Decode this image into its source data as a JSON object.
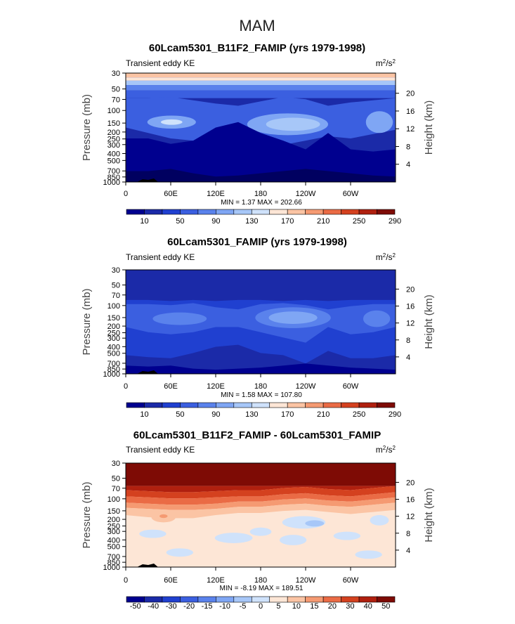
{
  "figure_title": "MAM",
  "colors": {
    "cb_pos": [
      "#00008f",
      "#1b2aa8",
      "#2040d0",
      "#3b5fe0",
      "#5a82ec",
      "#7fa6f4",
      "#a7c7f8",
      "#cfe2fb",
      "#fde6d6",
      "#fbc4a4",
      "#f59a72",
      "#ea6b45",
      "#d4411f",
      "#b0200f",
      "#7e0b05"
    ],
    "cb_diff": [
      "#00008f",
      "#1b2aa8",
      "#2040d0",
      "#3b5fe0",
      "#5a82ec",
      "#7fa6f4",
      "#a7c7f8",
      "#cfe2fb",
      "#fde6d6",
      "#fbc4a4",
      "#f59a72",
      "#ea6b45",
      "#d4411f",
      "#b0200f",
      "#7e0b05"
    ]
  },
  "chart_data": [
    {
      "type": "heatmap",
      "title": "60Lcam5301_B11F2_FAMIP (yrs 1979-1998)",
      "left_label": "Transient eddy KE",
      "units": "m²/s²",
      "units_base": "m",
      "units_sup1": "2",
      "units_mid": "/s",
      "units_sup2": "2",
      "ylabel": "Pressure (mb)",
      "ylabel_right": "Height (km)",
      "x_ticks": [
        "0",
        "60E",
        "120E",
        "180",
        "120W",
        "60W"
      ],
      "x_tick_values": [
        0,
        60,
        120,
        180,
        240,
        300
      ],
      "xlim": [
        0,
        360
      ],
      "y_ticks": [
        "30",
        "50",
        "70",
        "100",
        "150",
        "200",
        "250",
        "300",
        "400",
        "500",
        "700",
        "850",
        "1000"
      ],
      "y_tick_values": [
        30,
        50,
        70,
        100,
        150,
        200,
        250,
        300,
        400,
        500,
        700,
        850,
        1000
      ],
      "ylim": [
        30,
        1000
      ],
      "height_ticks": [
        "20",
        "16",
        "12",
        "8",
        "4"
      ],
      "height_tick_values": [
        20,
        16,
        12,
        8,
        4
      ],
      "stats": "MIN =    1.37   MAX = 202.66",
      "min": 1.37,
      "max": 202.66,
      "colorbar_labels": [
        "10",
        "50",
        "90",
        "130",
        "170",
        "210",
        "250",
        "290"
      ],
      "levels": [
        10,
        30,
        50,
        70,
        90,
        110,
        130,
        150,
        170,
        190,
        210,
        230,
        250,
        270,
        290
      ]
    },
    {
      "type": "heatmap",
      "title": "60Lcam5301_FAMIP (yrs 1979-1998)",
      "left_label": "Transient eddy KE",
      "units": "m²/s²",
      "units_base": "m",
      "units_sup1": "2",
      "units_mid": "/s",
      "units_sup2": "2",
      "ylabel": "Pressure (mb)",
      "ylabel_right": "Height (km)",
      "x_ticks": [
        "0",
        "60E",
        "120E",
        "180",
        "120W",
        "60W"
      ],
      "x_tick_values": [
        0,
        60,
        120,
        180,
        240,
        300
      ],
      "xlim": [
        0,
        360
      ],
      "y_ticks": [
        "30",
        "50",
        "70",
        "100",
        "150",
        "200",
        "250",
        "300",
        "400",
        "500",
        "700",
        "850",
        "1000"
      ],
      "y_tick_values": [
        30,
        50,
        70,
        100,
        150,
        200,
        250,
        300,
        400,
        500,
        700,
        850,
        1000
      ],
      "ylim": [
        30,
        1000
      ],
      "height_ticks": [
        "20",
        "16",
        "12",
        "8",
        "4"
      ],
      "height_tick_values": [
        20,
        16,
        12,
        8,
        4
      ],
      "stats": "MIN =    1.58   MAX = 107.80",
      "min": 1.58,
      "max": 107.8,
      "colorbar_labels": [
        "10",
        "50",
        "90",
        "130",
        "170",
        "210",
        "250",
        "290"
      ],
      "levels": [
        10,
        30,
        50,
        70,
        90,
        110,
        130,
        150,
        170,
        190,
        210,
        230,
        250,
        270,
        290
      ]
    },
    {
      "type": "heatmap",
      "title": "60Lcam5301_B11F2_FAMIP - 60Lcam5301_FAMIP",
      "left_label": "Transient eddy KE",
      "units": "m²/s²",
      "units_base": "m",
      "units_sup1": "2",
      "units_mid": "/s",
      "units_sup2": "2",
      "ylabel": "Pressure (mb)",
      "ylabel_right": "Height (km)",
      "x_ticks": [
        "0",
        "60E",
        "120E",
        "180",
        "120W",
        "60W"
      ],
      "x_tick_values": [
        0,
        60,
        120,
        180,
        240,
        300
      ],
      "xlim": [
        0,
        360
      ],
      "y_ticks": [
        "30",
        "50",
        "70",
        "100",
        "150",
        "200",
        "250",
        "300",
        "400",
        "500",
        "700",
        "850",
        "1000"
      ],
      "y_tick_values": [
        30,
        50,
        70,
        100,
        150,
        200,
        250,
        300,
        400,
        500,
        700,
        850,
        1000
      ],
      "ylim": [
        30,
        1000
      ],
      "height_ticks": [
        "20",
        "16",
        "12",
        "8",
        "4"
      ],
      "height_tick_values": [
        20,
        16,
        12,
        8,
        4
      ],
      "stats": "MIN =   -8.19   MAX = 189.51",
      "min": -8.19,
      "max": 189.51,
      "colorbar_labels": [
        "-50",
        "-40",
        "-30",
        "-20",
        "-15",
        "-10",
        "-5",
        "0",
        "5",
        "10",
        "15",
        "20",
        "30",
        "40",
        "50"
      ],
      "levels": [
        -50,
        -40,
        -30,
        -20,
        -15,
        -10,
        -5,
        0,
        5,
        10,
        15,
        20,
        30,
        40,
        50
      ]
    }
  ]
}
